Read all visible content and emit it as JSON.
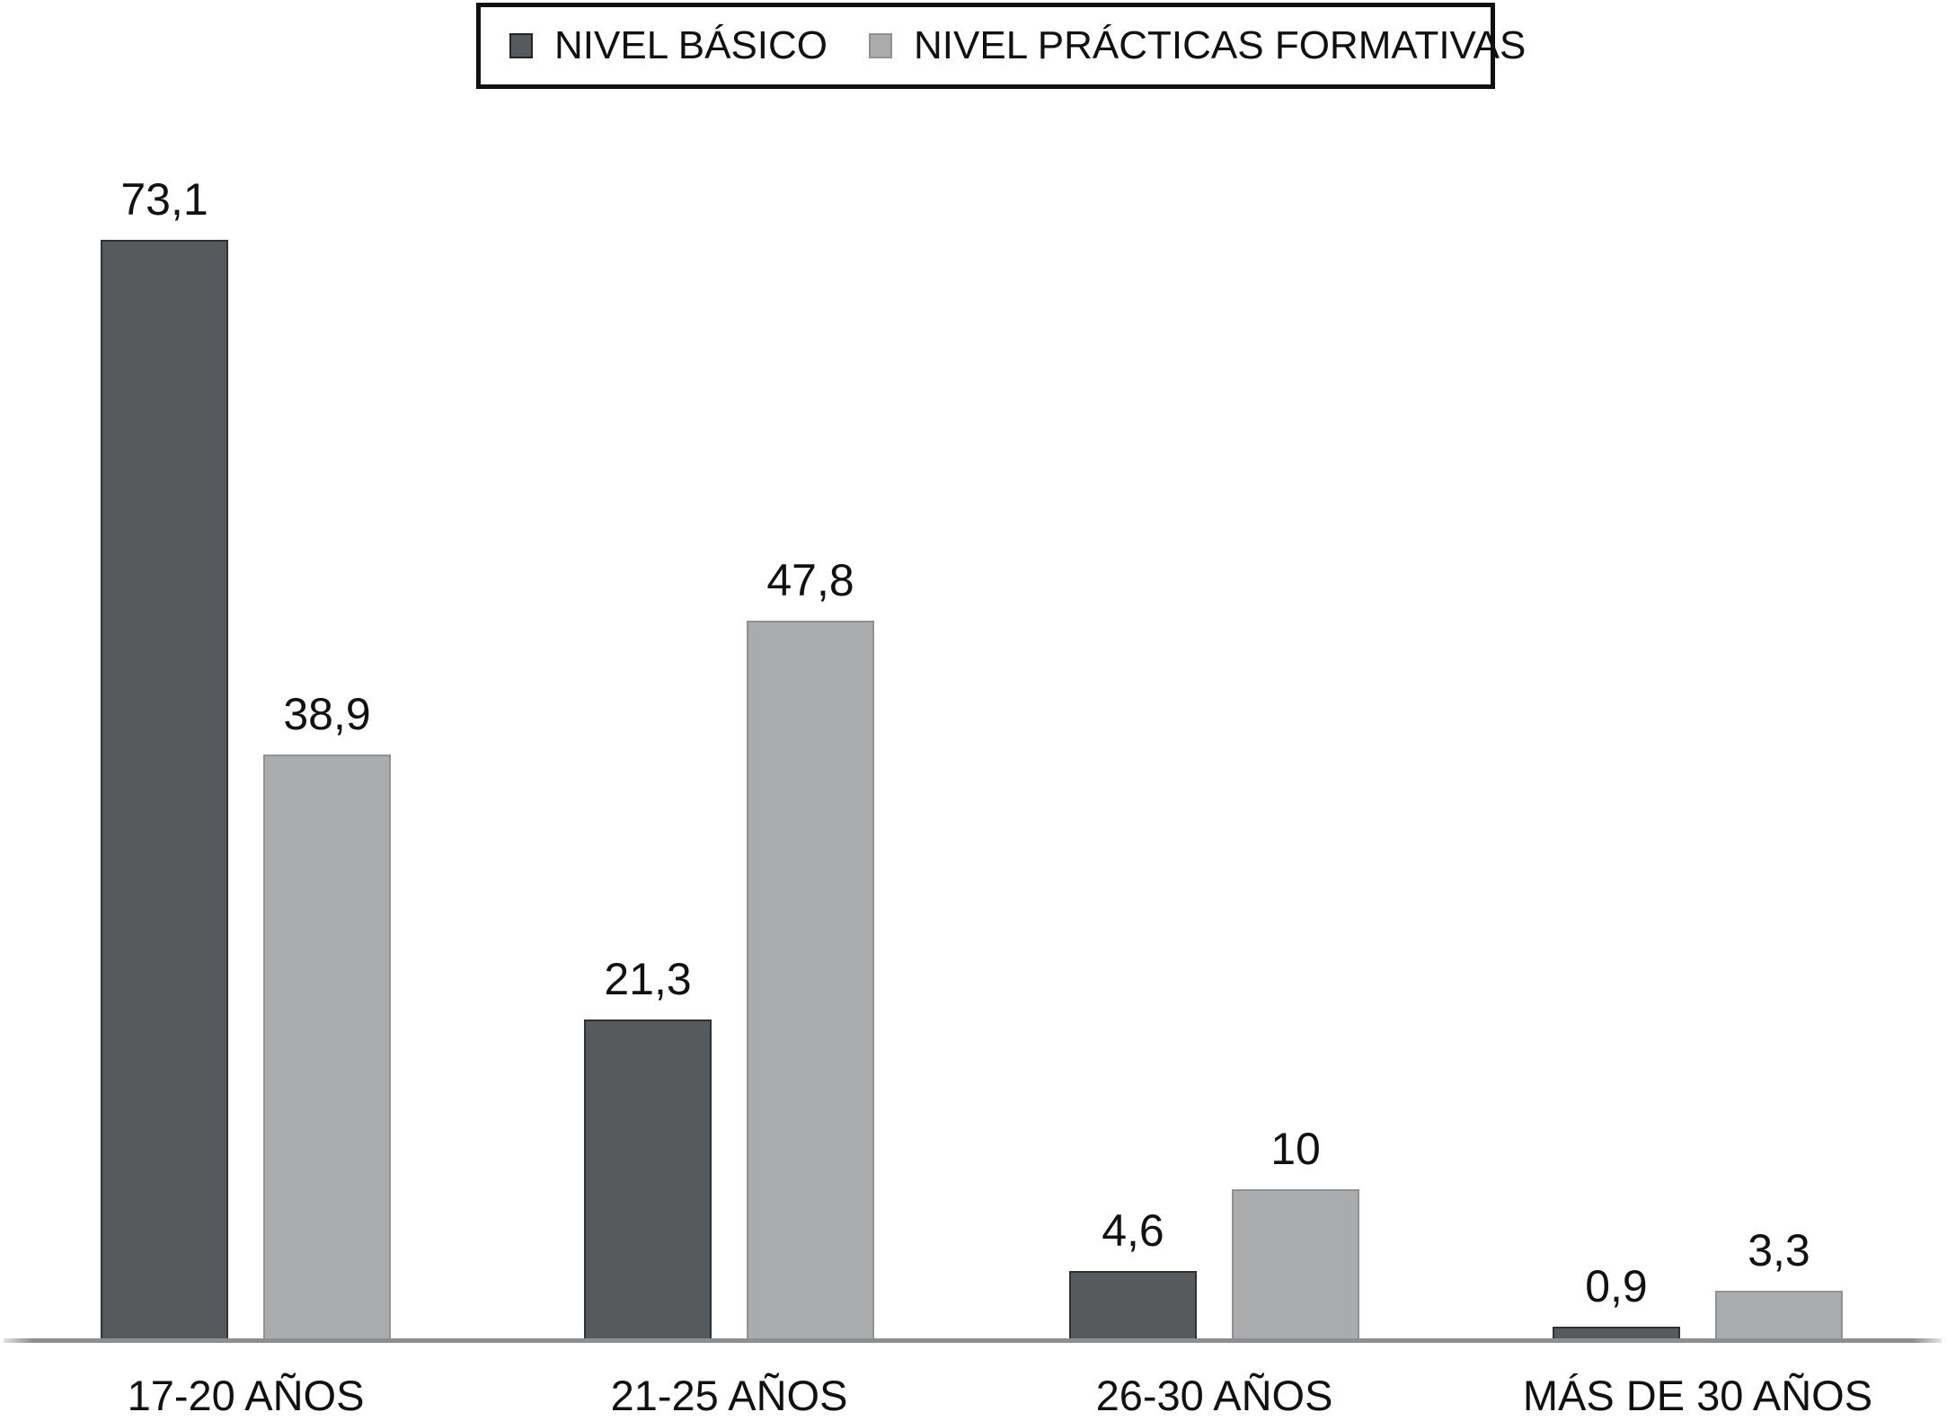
{
  "chart_data": {
    "type": "bar",
    "categories": [
      "17-20 AÑOS",
      "21-25 AÑOS",
      "26-30 AÑOS",
      "MÁS DE 30 AÑOS"
    ],
    "series": [
      {
        "name": "NIVEL BÁSICO",
        "values": [
          73.1,
          21.3,
          4.6,
          0.9
        ],
        "value_labels": [
          "73,1",
          "21,3",
          "4,6",
          "0,9"
        ],
        "color": "#575a5c",
        "border_color": "#303234"
      },
      {
        "name": "NIVEL PRÁCTICAS FORMATIVAS",
        "values": [
          38.9,
          47.8,
          10,
          3.3
        ],
        "value_labels": [
          "38,9",
          "47,8",
          "10",
          "3,3"
        ],
        "color": "#a9abad",
        "border_color": "#8f9193"
      }
    ],
    "title": "",
    "xlabel": "",
    "ylabel": "",
    "ylim": [
      0,
      80
    ],
    "grid": false,
    "axis_line_color": "#8c8e90",
    "legend_position": "top",
    "value_label_decimal_separator": "comma"
  },
  "legend": {
    "items": [
      {
        "label": "NIVEL BÁSICO",
        "color": "#575a5c",
        "border": "#232527"
      },
      {
        "label": "NIVEL PRÁCTICAS FORMATIVAS",
        "color": "#a9abad",
        "border": "#8f9193"
      }
    ]
  }
}
